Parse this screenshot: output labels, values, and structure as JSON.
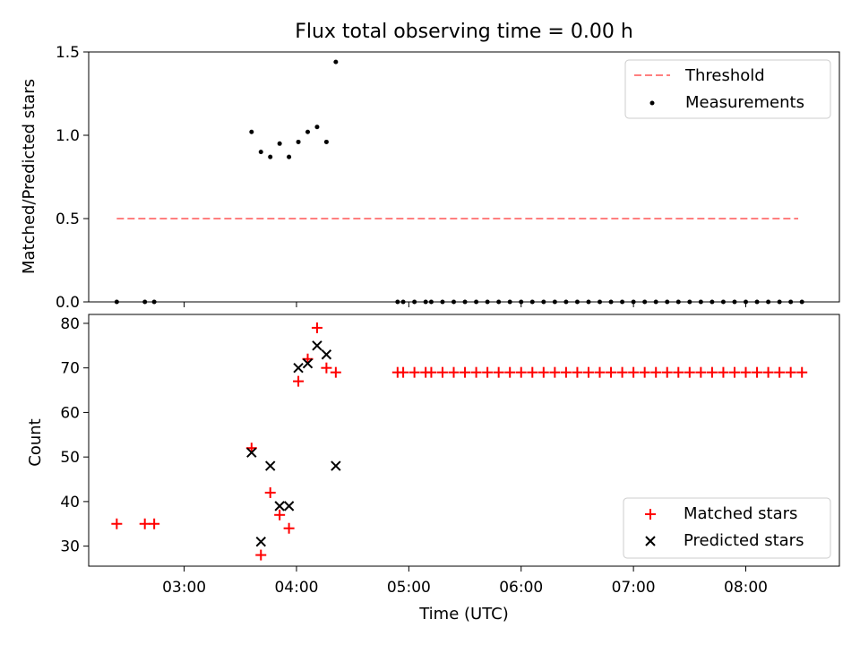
{
  "figure": {
    "title": "Flux total observing time = 0.00 h",
    "xlabel": "Time (UTC)"
  },
  "chart_data": [
    {
      "type": "scatter",
      "panel": "top",
      "ylabel": "Matched/Predicted stars",
      "xlim": [
        "02:09",
        "08:50"
      ],
      "ylim": [
        0,
        1.5
      ],
      "yticks": [
        "0.0",
        "0.5",
        "1.0",
        "1.5"
      ],
      "legend_position": "top-right",
      "grid": false,
      "series": [
        {
          "name": "Threshold",
          "style": "dashed-line",
          "color": "#ff7f7f",
          "x": [
            "02:24",
            "08:28"
          ],
          "y": [
            0.5,
            0.5
          ]
        },
        {
          "name": "Measurements",
          "style": "dot",
          "color": "#000000",
          "x": [
            "02:24",
            "02:39",
            "02:44",
            "03:36",
            "03:41",
            "03:46",
            "03:51",
            "03:56",
            "04:01",
            "04:06",
            "04:11",
            "04:16",
            "04:21",
            "04:54",
            "04:57",
            "05:03",
            "05:09",
            "05:12",
            "05:18",
            "05:24",
            "05:30",
            "05:36",
            "05:42",
            "05:48",
            "05:54",
            "06:00",
            "06:06",
            "06:12",
            "06:18",
            "06:24",
            "06:30",
            "06:36",
            "06:42",
            "06:48",
            "06:54",
            "07:00",
            "07:06",
            "07:12",
            "07:18",
            "07:24",
            "07:30",
            "07:36",
            "07:42",
            "07:48",
            "07:54",
            "08:00",
            "08:06",
            "08:12",
            "08:18",
            "08:24",
            "08:30"
          ],
          "y": [
            0,
            0,
            0,
            1.02,
            0.9,
            0.87,
            0.95,
            0.87,
            0.96,
            1.02,
            1.05,
            0.96,
            1.44,
            0,
            0,
            0,
            0,
            0,
            0,
            0,
            0,
            0,
            0,
            0,
            0,
            0,
            0,
            0,
            0,
            0,
            0,
            0,
            0,
            0,
            0,
            0,
            0,
            0,
            0,
            0,
            0,
            0,
            0,
            0,
            0,
            0,
            0,
            0,
            0,
            0,
            0
          ]
        }
      ]
    },
    {
      "type": "scatter",
      "panel": "bottom",
      "ylabel": "Count",
      "xlim": [
        "02:09",
        "08:50"
      ],
      "ylim": [
        25.5,
        82
      ],
      "yticks": [
        "30",
        "40",
        "50",
        "60",
        "70",
        "80"
      ],
      "xticks": [
        "03:00",
        "04:00",
        "05:00",
        "06:00",
        "07:00",
        "08:00"
      ],
      "legend_position": "bottom-right",
      "grid": false,
      "series": [
        {
          "name": "Matched stars",
          "marker": "plus",
          "color": "#ff0000",
          "x": [
            "02:24",
            "02:39",
            "02:44",
            "03:36",
            "03:41",
            "03:46",
            "03:51",
            "03:56",
            "04:01",
            "04:06",
            "04:11",
            "04:16",
            "04:21",
            "04:54",
            "04:57",
            "05:03",
            "05:09",
            "05:12",
            "05:18",
            "05:24",
            "05:30",
            "05:36",
            "05:42",
            "05:48",
            "05:54",
            "06:00",
            "06:06",
            "06:12",
            "06:18",
            "06:24",
            "06:30",
            "06:36",
            "06:42",
            "06:48",
            "06:54",
            "07:00",
            "07:06",
            "07:12",
            "07:18",
            "07:24",
            "07:30",
            "07:36",
            "07:42",
            "07:48",
            "07:54",
            "08:00",
            "08:06",
            "08:12",
            "08:18",
            "08:24",
            "08:30"
          ],
          "y": [
            35,
            35,
            35,
            52,
            28,
            42,
            37,
            34,
            67,
            72,
            79,
            70,
            69,
            69,
            69,
            69,
            69,
            69,
            69,
            69,
            69,
            69,
            69,
            69,
            69,
            69,
            69,
            69,
            69,
            69,
            69,
            69,
            69,
            69,
            69,
            69,
            69,
            69,
            69,
            69,
            69,
            69,
            69,
            69,
            69,
            69,
            69,
            69,
            69,
            69,
            69
          ]
        },
        {
          "name": "Predicted stars",
          "marker": "x",
          "color": "#000000",
          "x": [
            "03:36",
            "03:41",
            "03:46",
            "03:51",
            "03:56",
            "04:01",
            "04:06",
            "04:11",
            "04:16",
            "04:21"
          ],
          "y": [
            51,
            31,
            48,
            39,
            39,
            70,
            71,
            75,
            73,
            48
          ]
        }
      ]
    }
  ]
}
